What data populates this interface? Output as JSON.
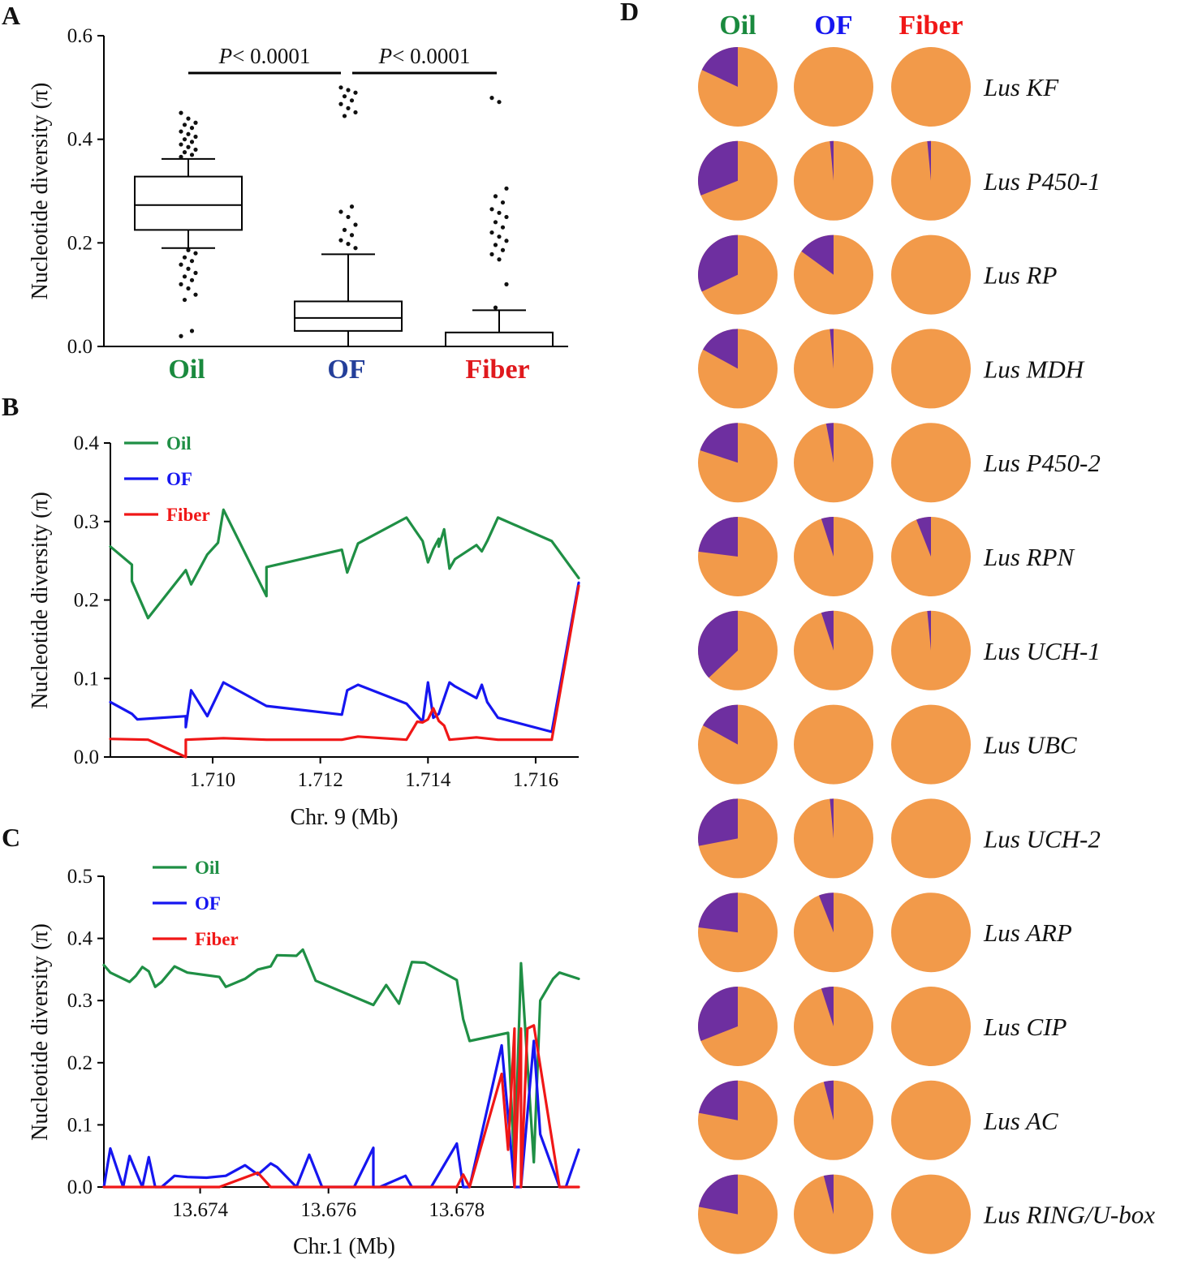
{
  "panels": {
    "A": {
      "label": "A"
    },
    "B": {
      "label": "B"
    },
    "C": {
      "label": "C"
    },
    "D": {
      "label": "D"
    }
  },
  "chart_data": [
    {
      "id": "A",
      "type": "box",
      "ylabel": "Nucleotide diversity (π)",
      "ylim": [
        0,
        0.6
      ],
      "yticks": [
        "0.0",
        "0.2",
        "0.4",
        "0.6"
      ],
      "categories": [
        "Oil",
        "OF",
        "Fiber"
      ],
      "category_colors": [
        "#1a8a3e",
        "#243f9a",
        "#e0191d"
      ],
      "boxes": [
        {
          "group": "Oil",
          "q1": 0.225,
          "median": 0.273,
          "q3": 0.328,
          "whisker_low": 0.19,
          "whisker_high": 0.362,
          "outliers": [
            0.451,
            0.44,
            0.432,
            0.428,
            0.422,
            0.415,
            0.41,
            0.405,
            0.4,
            0.395,
            0.39,
            0.385,
            0.38,
            0.375,
            0.37,
            0.366,
            0.186,
            0.18,
            0.172,
            0.165,
            0.158,
            0.15,
            0.142,
            0.135,
            0.128,
            0.12,
            0.112,
            0.1,
            0.09,
            0.03,
            0.02
          ]
        },
        {
          "group": "OF",
          "q1": 0.03,
          "median": 0.055,
          "q3": 0.087,
          "whisker_low": 0.0,
          "whisker_high": 0.178,
          "outliers": [
            0.5,
            0.495,
            0.49,
            0.483,
            0.475,
            0.468,
            0.46,
            0.452,
            0.445,
            0.27,
            0.26,
            0.25,
            0.235,
            0.225,
            0.215,
            0.205,
            0.198,
            0.19
          ]
        },
        {
          "group": "Fiber",
          "q1": 0.0,
          "median": 0.0,
          "q3": 0.027,
          "whisker_low": 0.0,
          "whisker_high": 0.07,
          "outliers": [
            0.48,
            0.472,
            0.305,
            0.29,
            0.278,
            0.265,
            0.258,
            0.25,
            0.24,
            0.23,
            0.22,
            0.212,
            0.204,
            0.196,
            0.186,
            0.178,
            0.168,
            0.12,
            0.075
          ]
        }
      ],
      "annotations": [
        {
          "groups": [
            "Oil",
            "OF"
          ],
          "italic": "P",
          "text": "< 0.0001"
        },
        {
          "groups": [
            "OF",
            "Fiber"
          ],
          "italic": "P",
          "text": "< 0.0001"
        }
      ]
    },
    {
      "id": "B",
      "type": "line",
      "xlabel": "Chr. 9 (Mb)",
      "ylabel": "Nucleotide diversity (π)",
      "xlim": [
        1.7081,
        1.7168
      ],
      "ylim": [
        0,
        0.4
      ],
      "xticks": [
        1.71,
        1.712,
        1.714,
        1.716
      ],
      "xtick_labels": [
        "1.710",
        "1.712",
        "1.714",
        "1.716"
      ],
      "yticks": [
        "0.0",
        "0.1",
        "0.2",
        "0.3",
        "0.4"
      ],
      "legend": [
        "Oil",
        "OF",
        "Fiber"
      ],
      "series": [
        {
          "name": "Oil",
          "color": "#1f8f45",
          "x": [
            1.7081,
            1.7085,
            1.7085,
            1.7088,
            1.7095,
            1.7096,
            1.7099,
            1.7101,
            1.7102,
            1.711,
            1.711,
            1.7124,
            1.7125,
            1.7127,
            1.7136,
            1.7139,
            1.714,
            1.7141,
            1.7142,
            1.7142,
            1.7143,
            1.7144,
            1.7145,
            1.7149,
            1.715,
            1.7151,
            1.7153,
            1.7163,
            1.7168
          ],
          "y": [
            0.268,
            0.245,
            0.224,
            0.177,
            0.238,
            0.22,
            0.258,
            0.273,
            0.315,
            0.205,
            0.242,
            0.264,
            0.235,
            0.272,
            0.305,
            0.275,
            0.248,
            0.265,
            0.278,
            0.268,
            0.29,
            0.24,
            0.252,
            0.27,
            0.262,
            0.275,
            0.305,
            0.275,
            0.228
          ]
        },
        {
          "name": "OF",
          "color": "#1616f0",
          "x": [
            1.7081,
            1.7085,
            1.7086,
            1.7095,
            1.7095,
            1.7096,
            1.7099,
            1.7102,
            1.711,
            1.7124,
            1.7125,
            1.7127,
            1.7136,
            1.7139,
            1.714,
            1.7141,
            1.7142,
            1.7144,
            1.7145,
            1.7149,
            1.715,
            1.7151,
            1.7153,
            1.7163,
            1.7168
          ],
          "y": [
            0.07,
            0.055,
            0.048,
            0.052,
            0.038,
            0.085,
            0.052,
            0.095,
            0.065,
            0.054,
            0.085,
            0.092,
            0.068,
            0.045,
            0.095,
            0.05,
            0.055,
            0.095,
            0.09,
            0.075,
            0.092,
            0.07,
            0.05,
            0.032,
            0.222
          ]
        },
        {
          "name": "Fiber",
          "color": "#f01717",
          "x": [
            1.7081,
            1.7088,
            1.7095,
            1.7095,
            1.7102,
            1.711,
            1.7124,
            1.7127,
            1.7136,
            1.7138,
            1.7139,
            1.714,
            1.7141,
            1.7142,
            1.7143,
            1.7144,
            1.7149,
            1.7153,
            1.7163,
            1.7168
          ],
          "y": [
            0.023,
            0.022,
            0.0,
            0.022,
            0.024,
            0.022,
            0.022,
            0.026,
            0.022,
            0.045,
            0.044,
            0.048,
            0.062,
            0.046,
            0.04,
            0.022,
            0.025,
            0.022,
            0.022,
            0.218
          ]
        }
      ]
    },
    {
      "id": "C",
      "type": "line",
      "xlabel": "Chr.1 (Mb)",
      "ylabel": "Nucleotide diversity (π)",
      "xlim": [
        13.6725,
        13.6799
      ],
      "ylim": [
        0,
        0.5
      ],
      "xticks": [
        13.674,
        13.676,
        13.678
      ],
      "xtick_labels": [
        "13.674",
        "13.676",
        "13.678"
      ],
      "yticks": [
        "0.0",
        "0.1",
        "0.2",
        "0.3",
        "0.4",
        "0.5"
      ],
      "legend": [
        "Oil",
        "OF",
        "Fiber"
      ],
      "series": [
        {
          "name": "Oil",
          "color": "#1f8f45",
          "x": [
            13.6725,
            13.6726,
            13.6729,
            13.673,
            13.6731,
            13.6732,
            13.6733,
            13.6734,
            13.6736,
            13.6738,
            13.6743,
            13.6744,
            13.6747,
            13.6749,
            13.6751,
            13.6752,
            13.6755,
            13.6756,
            13.6758,
            13.6767,
            13.6769,
            13.6771,
            13.6773,
            13.6775,
            13.678,
            13.6781,
            13.6782,
            13.6788,
            13.6789,
            13.679,
            13.6792,
            13.6793,
            13.6795,
            13.6796,
            13.6799
          ],
          "y": [
            0.357,
            0.345,
            0.33,
            0.34,
            0.354,
            0.347,
            0.322,
            0.33,
            0.355,
            0.345,
            0.338,
            0.322,
            0.335,
            0.35,
            0.355,
            0.373,
            0.372,
            0.382,
            0.332,
            0.293,
            0.325,
            0.295,
            0.362,
            0.361,
            0.333,
            0.27,
            0.235,
            0.248,
            0.03,
            0.36,
            0.04,
            0.3,
            0.335,
            0.345,
            0.335
          ]
        },
        {
          "name": "OF",
          "color": "#1616f0",
          "x": [
            13.6725,
            13.6726,
            13.6728,
            13.6729,
            13.6731,
            13.6732,
            13.6733,
            13.6734,
            13.6736,
            13.6738,
            13.6741,
            13.6744,
            13.6747,
            13.6749,
            13.6751,
            13.6752,
            13.6755,
            13.6757,
            13.6759,
            13.6764,
            13.6767,
            13.6767,
            13.6768,
            13.6772,
            13.6773,
            13.6776,
            13.678,
            13.6781,
            13.6782,
            13.6787,
            13.6789,
            13.679,
            13.6792,
            13.6793,
            13.6796,
            13.6797,
            13.6799
          ],
          "y": [
            0.0,
            0.062,
            0.0,
            0.05,
            0.0,
            0.048,
            0.0,
            0.0,
            0.018,
            0.016,
            0.015,
            0.018,
            0.035,
            0.02,
            0.038,
            0.032,
            0.0,
            0.052,
            0.0,
            0.0,
            0.063,
            0.0,
            0.0,
            0.018,
            0.0,
            0.0,
            0.07,
            0.0,
            0.0,
            0.228,
            0.0,
            0.0,
            0.235,
            0.085,
            0.0,
            0.0,
            0.06
          ]
        },
        {
          "name": "Fiber",
          "color": "#f01717",
          "x": [
            13.6725,
            13.6743,
            13.6749,
            13.6751,
            13.678,
            13.6781,
            13.6782,
            13.6787,
            13.6788,
            13.6789,
            13.6789,
            13.679,
            13.679,
            13.6791,
            13.6792,
            13.6796,
            13.6799
          ],
          "y": [
            0.0,
            0.0,
            0.023,
            0.0,
            0.0,
            0.02,
            0.0,
            0.182,
            0.06,
            0.255,
            0.0,
            0.255,
            0.0,
            0.255,
            0.26,
            0.0,
            0.0
          ]
        }
      ]
    },
    {
      "id": "D",
      "type": "pie",
      "columns": [
        "Oil",
        "OF",
        "Fiber"
      ],
      "column_colors": [
        "#1a8a3e",
        "#1616f0",
        "#f01717"
      ],
      "slice_colors": {
        "major": "#f29a4a",
        "minor": "#6e2fa0"
      },
      "genes": [
        "Lus KF",
        "Lus P450-1",
        "Lus RP",
        "Lus MDH",
        "Lus P450-2",
        "Lus RPN",
        "Lus UCH-1",
        "Lus UBC",
        "Lus UCH-2",
        "Lus ARP",
        "Lus CIP",
        "Lus AC",
        "Lus RING/U-box"
      ],
      "minor_fraction": [
        [
          0.18,
          0.0,
          0.0
        ],
        [
          0.31,
          0.015,
          0.015
        ],
        [
          0.32,
          0.15,
          0.0
        ],
        [
          0.17,
          0.015,
          0.0
        ],
        [
          0.2,
          0.03,
          0.0
        ],
        [
          0.23,
          0.05,
          0.06
        ],
        [
          0.37,
          0.05,
          0.015
        ],
        [
          0.17,
          0.0,
          0.0
        ],
        [
          0.28,
          0.015,
          0.0
        ],
        [
          0.23,
          0.06,
          0.0
        ],
        [
          0.31,
          0.05,
          0.0
        ],
        [
          0.22,
          0.04,
          0.0
        ],
        [
          0.22,
          0.04,
          0.0
        ]
      ]
    }
  ]
}
